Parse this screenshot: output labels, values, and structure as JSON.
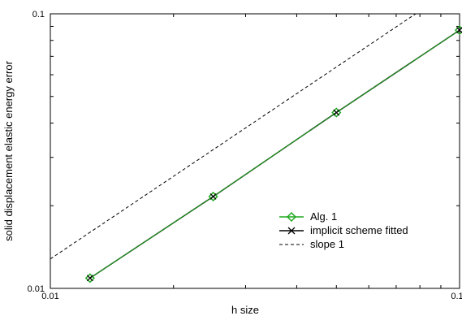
{
  "chart_data": {
    "type": "line",
    "xlabel": "h size",
    "ylabel": "solid displacement elastic energy error",
    "x_scale": "log",
    "y_scale": "log",
    "xlim": [
      0.01,
      0.1
    ],
    "ylim": [
      0.01,
      0.1
    ],
    "x_tick_labels": [
      "0.01",
      "0.1"
    ],
    "y_tick_labels": [
      "0.01",
      "0.1"
    ],
    "grid": false,
    "legend_position": "lower-right",
    "series": [
      {
        "name": "Alg. 1",
        "marker": "diamond",
        "color": "#1fa81f",
        "x": [
          0.0125,
          0.025,
          0.05,
          0.1
        ],
        "y": [
          0.0109,
          0.0216,
          0.0437,
          0.0872
        ]
      },
      {
        "name": "implicit scheme fitted",
        "marker": "x",
        "color": "#000000",
        "x": [
          0.0125,
          0.025,
          0.05,
          0.1
        ],
        "y": [
          0.0109,
          0.0216,
          0.0437,
          0.0872
        ]
      },
      {
        "name": "slope 1",
        "marker": "none",
        "linestyle": "dashed",
        "color": "#000000",
        "x": [
          0.01,
          0.1
        ],
        "y": [
          0.0128,
          0.128
        ]
      }
    ]
  }
}
